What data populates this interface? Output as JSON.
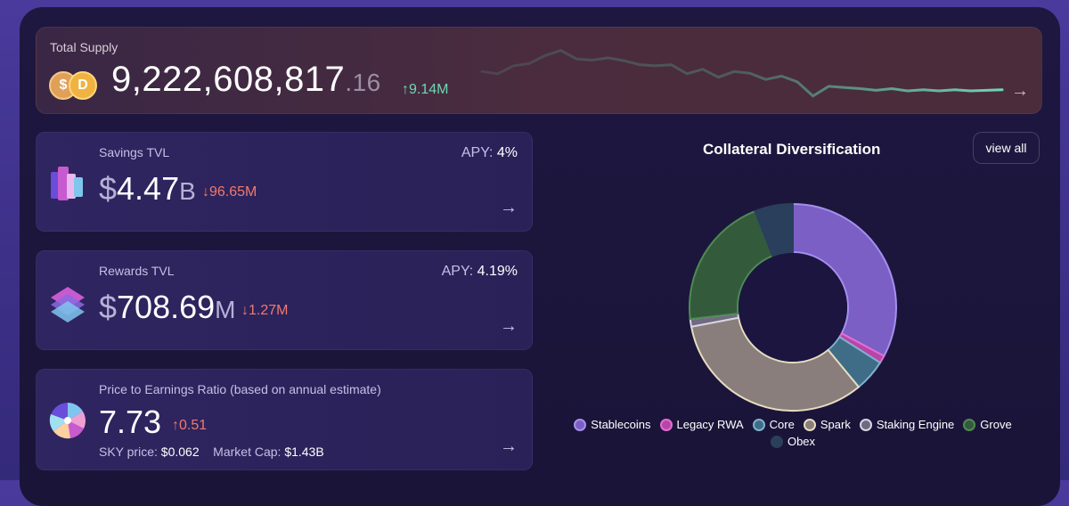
{
  "supply": {
    "label": "Total Supply",
    "integer": "9,222,608,817",
    "decimal": ".16",
    "change": "↑9.14M",
    "arrow": "→"
  },
  "cards": [
    {
      "label": "Savings TVL",
      "currency": "$",
      "value": "4.47",
      "unit": "B",
      "change": "↓96.65M",
      "apy_label": "APY:",
      "apy_value": "4%",
      "arrow": "→"
    },
    {
      "label": "Rewards TVL",
      "currency": "$",
      "value": "708.69",
      "unit": "M",
      "change": "↓1.27M",
      "apy_label": "APY:",
      "apy_value": "4.19%",
      "arrow": "→"
    },
    {
      "label": "Price to Earnings Ratio (based on annual estimate)",
      "value": "7.73",
      "change": "↑0.51",
      "sky_price_label": "SKY price:",
      "sky_price": "$0.062",
      "market_cap_label": "Market Cap:",
      "market_cap": "$1.43B",
      "arrow": "→"
    }
  ],
  "diversification": {
    "title": "Collateral Diversification",
    "view_all": "view all",
    "legend": [
      {
        "name": "Stablecoins",
        "color": "#7b5fc4",
        "border": "#a58ff0"
      },
      {
        "name": "Legacy RWA",
        "color": "#b845a8",
        "border": "#e26fd0"
      },
      {
        "name": "Core",
        "color": "#3f6c86",
        "border": "#7fb1cf"
      },
      {
        "name": "Spark",
        "color": "#8a7e7c",
        "border": "#e6ddc0"
      },
      {
        "name": "Staking Engine",
        "color": "#6f6a80",
        "border": "#d8d4e6"
      },
      {
        "name": "Grove",
        "color": "#345a3c",
        "border": "#4e8a54"
      },
      {
        "name": "Obex",
        "color": "#2a3f5c",
        "border": "#2a3f5c"
      }
    ],
    "shares": [
      0.328,
      0.012,
      0.05,
      0.33,
      0.012,
      0.208,
      0.06
    ]
  },
  "supply_trend": [
    0.52,
    0.56,
    0.42,
    0.38,
    0.24,
    0.15,
    0.3,
    0.32,
    0.28,
    0.33,
    0.4,
    0.42,
    0.4,
    0.56,
    0.48,
    0.62,
    0.52,
    0.55,
    0.66,
    0.6,
    0.7,
    0.95,
    0.78,
    0.8,
    0.82,
    0.85,
    0.82,
    0.86,
    0.84,
    0.86,
    0.84,
    0.86,
    0.85,
    0.84
  ]
}
